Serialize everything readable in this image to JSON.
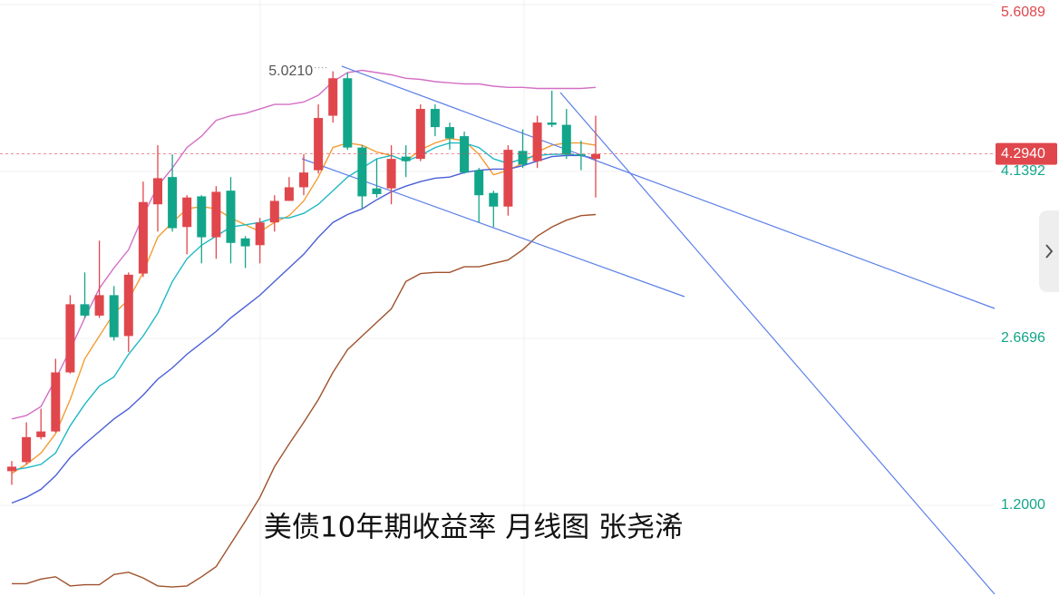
{
  "chart_data": {
    "type": "candlestick",
    "title": "美债10年期收益率 月线图 张尧浠",
    "ylim": [
      0.401,
      5.649
    ],
    "yticks": [
      5.6089,
      4.1392,
      2.6696,
      {
        "value": 1.2,
        "label": "1.2000"
      }
    ],
    "grid": true,
    "up_color": "#e0474c",
    "down_color": "#13a58a",
    "last_price": {
      "value": 4.294,
      "label": "4.2940"
    },
    "annotations": [
      {
        "value": 5.021,
        "label": "5.0210"
      }
    ],
    "open": [
      1.5,
      1.58,
      1.8,
      1.85,
      2.37,
      2.97,
      2.87,
      3.05,
      2.69,
      3.24,
      3.85,
      4.09,
      3.65,
      3.92,
      3.56,
      3.97,
      3.55,
      3.49,
      3.69,
      3.88,
      4.0,
      4.15,
      4.63,
      4.96,
      4.35,
      3.99,
      3.99,
      4.27,
      4.25,
      4.69,
      4.53,
      4.45,
      4.15,
      3.95,
      3.83,
      4.32,
      4.23,
      4.57,
      4.55,
      4.29,
      4.25
    ],
    "high": [
      1.59,
      1.93,
      2.05,
      2.49,
      3.05,
      3.25,
      3.53,
      3.13,
      3.25,
      4.05,
      4.37,
      4.29,
      3.93,
      3.93,
      4.01,
      4.09,
      3.57,
      3.73,
      3.93,
      4.09,
      4.29,
      4.73,
      5.021,
      5.01,
      4.37,
      4.25,
      4.37,
      4.37,
      4.73,
      4.73,
      4.57,
      4.49,
      4.17,
      3.97,
      4.37,
      4.51,
      4.63,
      4.85,
      4.69,
      4.41,
      4.63
    ],
    "low": [
      1.38,
      1.56,
      1.78,
      1.84,
      2.36,
      2.85,
      2.85,
      2.65,
      2.55,
      3.21,
      3.61,
      3.61,
      3.41,
      3.33,
      3.37,
      3.33,
      3.29,
      3.33,
      3.61,
      3.88,
      3.93,
      4.12,
      4.57,
      4.33,
      3.81,
      3.91,
      3.85,
      4.09,
      4.23,
      4.45,
      4.33,
      4.12,
      3.69,
      3.65,
      3.75,
      4.17,
      4.17,
      4.53,
      4.25,
      4.15,
      3.91
    ],
    "close": [
      1.54,
      1.8,
      1.85,
      2.37,
      2.97,
      2.87,
      3.05,
      2.68,
      3.23,
      3.87,
      4.08,
      3.64,
      3.91,
      3.56,
      3.96,
      3.51,
      3.48,
      3.69,
      3.88,
      4.0,
      4.13,
      4.61,
      4.96,
      4.35,
      3.92,
      3.94,
      4.25,
      4.23,
      4.69,
      4.53,
      4.43,
      4.13,
      3.93,
      3.83,
      4.33,
      4.2,
      4.57,
      4.55,
      4.29,
      4.28,
      4.294
    ],
    "series": [
      {
        "color": "#d36fc6",
        "values": [
          1.96,
          1.99,
          2.07,
          2.31,
          2.57,
          2.85,
          3.11,
          3.29,
          3.45,
          3.75,
          4.01,
          4.17,
          4.35,
          4.45,
          4.59,
          4.63,
          4.65,
          4.69,
          4.73,
          4.73,
          4.75,
          4.81,
          4.93,
          5.01,
          5.03,
          5.01,
          4.99,
          4.96,
          4.95,
          4.93,
          4.92,
          4.91,
          4.91,
          4.89,
          4.88,
          4.88,
          4.87,
          4.87,
          4.87,
          4.87,
          4.88
        ]
      },
      {
        "color": "#f39c33",
        "values": [
          1.48,
          1.56,
          1.66,
          1.83,
          2.13,
          2.49,
          2.69,
          2.89,
          3.01,
          3.25,
          3.56,
          3.69,
          3.81,
          3.83,
          3.81,
          3.73,
          3.67,
          3.61,
          3.69,
          3.75,
          3.88,
          4.09,
          4.35,
          4.39,
          4.37,
          4.31,
          4.28,
          4.23,
          4.33,
          4.39,
          4.43,
          4.41,
          4.29,
          4.11,
          4.15,
          4.21,
          4.31,
          4.37,
          4.39,
          4.39,
          4.37
        ]
      },
      {
        "color": "#1fb8c6",
        "values": [
          1.51,
          1.53,
          1.56,
          1.66,
          1.9,
          2.09,
          2.25,
          2.33,
          2.53,
          2.69,
          2.89,
          3.17,
          3.37,
          3.49,
          3.57,
          3.65,
          3.67,
          3.69,
          3.73,
          3.73,
          3.77,
          3.85,
          3.97,
          4.09,
          4.17,
          4.25,
          4.28,
          4.23,
          4.28,
          4.35,
          4.39,
          4.39,
          4.35,
          4.25,
          4.21,
          4.25,
          4.28,
          4.29,
          4.29,
          4.28,
          4.25
        ]
      },
      {
        "color": "#4a5fd6",
        "values": [
          1.22,
          1.27,
          1.34,
          1.46,
          1.62,
          1.74,
          1.85,
          1.96,
          2.05,
          2.17,
          2.31,
          2.41,
          2.53,
          2.63,
          2.73,
          2.85,
          2.95,
          3.05,
          3.17,
          3.29,
          3.41,
          3.56,
          3.69,
          3.76,
          3.81,
          3.89,
          3.96,
          4.01,
          4.05,
          4.08,
          4.09,
          4.13,
          4.15,
          4.16,
          4.16,
          4.19,
          4.23,
          4.27,
          4.28,
          4.28,
          4.25
        ]
      },
      {
        "color": "#a0522d",
        "values": [
          0.51,
          0.51,
          0.55,
          0.57,
          0.49,
          0.5,
          0.5,
          0.59,
          0.61,
          0.56,
          0.49,
          0.48,
          0.49,
          0.57,
          0.66,
          0.86,
          1.06,
          1.27,
          1.54,
          1.74,
          1.93,
          2.13,
          2.37,
          2.57,
          2.69,
          2.81,
          2.93,
          3.17,
          3.24,
          3.25,
          3.25,
          3.3,
          3.3,
          3.33,
          3.36,
          3.45,
          3.57,
          3.65,
          3.71,
          3.75,
          3.76
        ]
      }
    ]
  }
}
